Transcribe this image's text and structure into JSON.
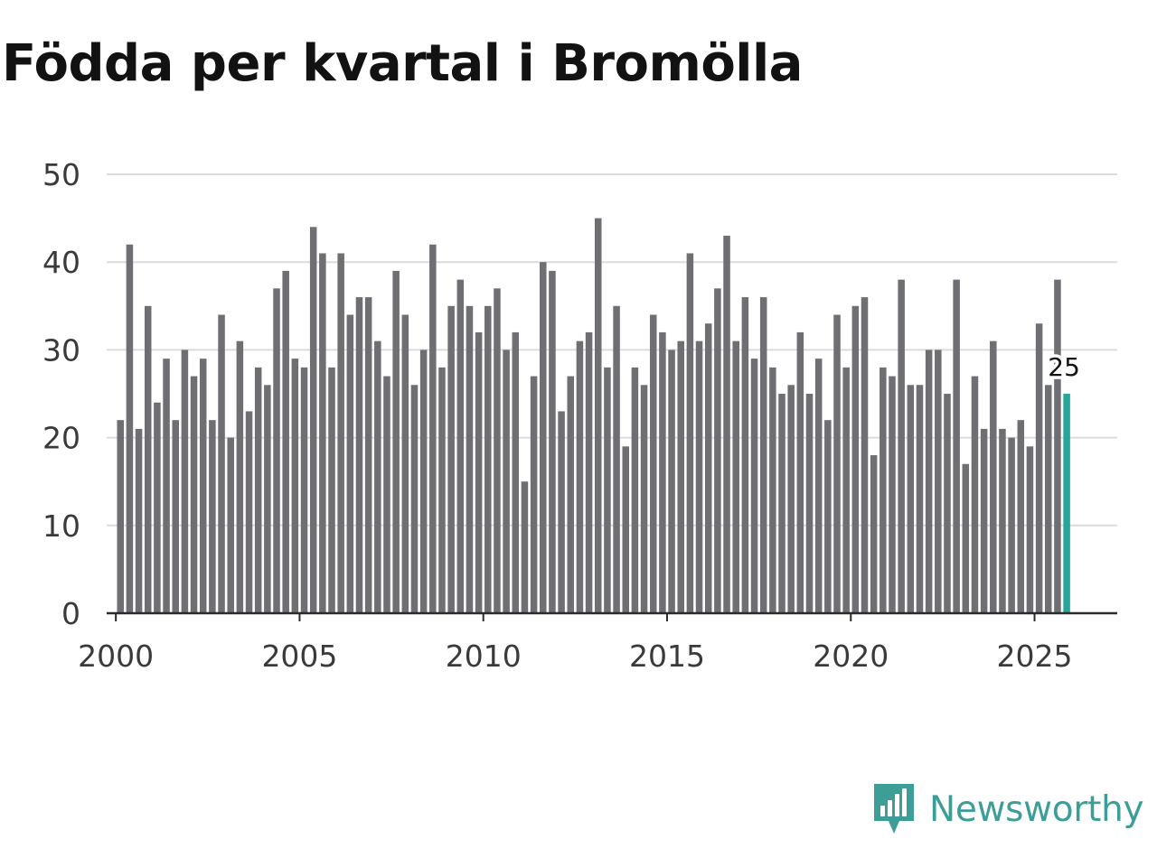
{
  "chart_data": {
    "type": "bar",
    "title": "Födda per kvartal i Bromölla",
    "xlabel": "",
    "ylabel": "",
    "ylim": [
      0,
      50
    ],
    "yticks": [
      0,
      10,
      20,
      30,
      40,
      50
    ],
    "xlim": [
      1999.75,
      2027.25
    ],
    "xticks": [
      2000,
      2005,
      2010,
      2015,
      2020,
      2025
    ],
    "grid": true,
    "start_year": 2000,
    "quarters_per_year": 4,
    "values": [
      22,
      42,
      21,
      35,
      24,
      29,
      22,
      30,
      27,
      29,
      22,
      34,
      20,
      31,
      23,
      28,
      26,
      37,
      39,
      29,
      28,
      44,
      41,
      28,
      41,
      34,
      36,
      36,
      31,
      27,
      39,
      34,
      26,
      30,
      42,
      28,
      35,
      38,
      35,
      32,
      35,
      37,
      30,
      32,
      15,
      27,
      40,
      39,
      23,
      27,
      31,
      32,
      45,
      28,
      35,
      19,
      28,
      26,
      34,
      32,
      30,
      31,
      41,
      31,
      33,
      37,
      43,
      31,
      36,
      29,
      36,
      28,
      25,
      26,
      32,
      25,
      29,
      22,
      34,
      28,
      35,
      36,
      18,
      28,
      27,
      38,
      26,
      26,
      30,
      30,
      25,
      38,
      17,
      27,
      21,
      31,
      21,
      20,
      22,
      19,
      33,
      26,
      38,
      25
    ],
    "highlight_index": 103,
    "highlight_label": "25",
    "bar_color": "#6f6e73",
    "highlight_color": "#26a69a"
  },
  "brand": {
    "name": "Newsworthy",
    "icon": "newsworthy-logo-icon",
    "color": "#3d9e98"
  }
}
